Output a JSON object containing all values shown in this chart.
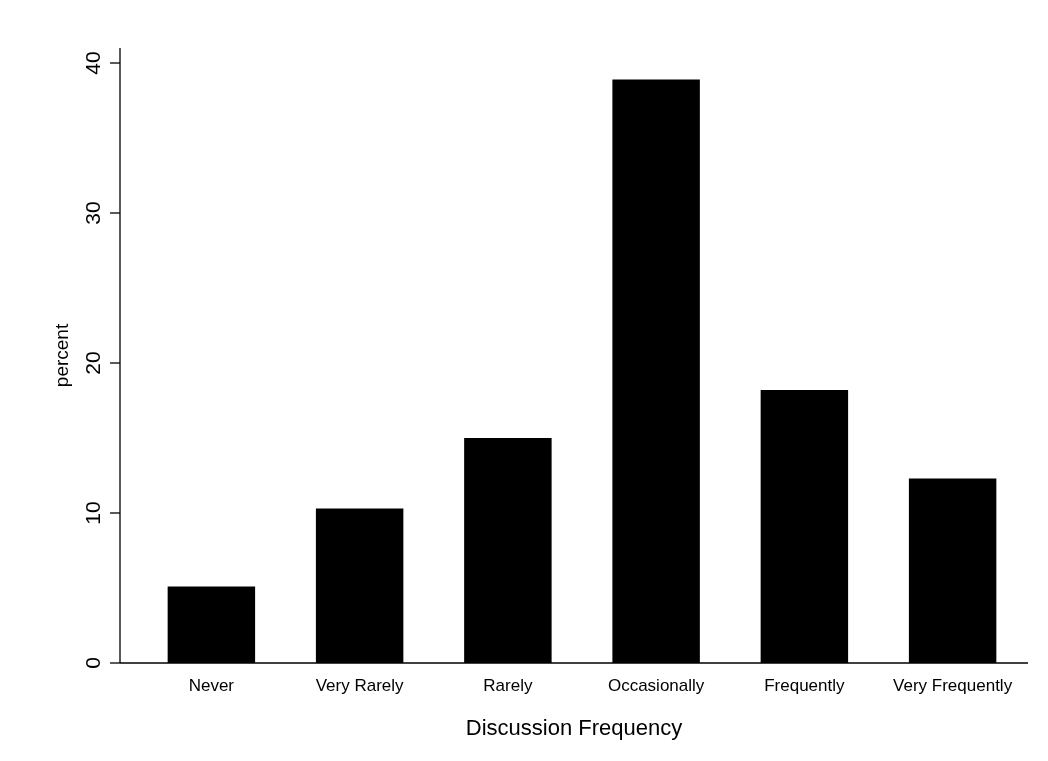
{
  "chart_data": {
    "type": "bar",
    "xlabel": "Discussion Frequency",
    "ylabel": "percent",
    "categories": [
      "Never",
      "Very Rarely",
      "Rarely",
      "Occasionally",
      "Frequently",
      "Very Frequently"
    ],
    "values": [
      5.1,
      10.3,
      15.0,
      38.9,
      18.2,
      12.3
    ],
    "color": "#000000",
    "ylim": [
      0,
      41
    ],
    "yticks": [
      0,
      10,
      20,
      30,
      40
    ],
    "grid": false
  }
}
